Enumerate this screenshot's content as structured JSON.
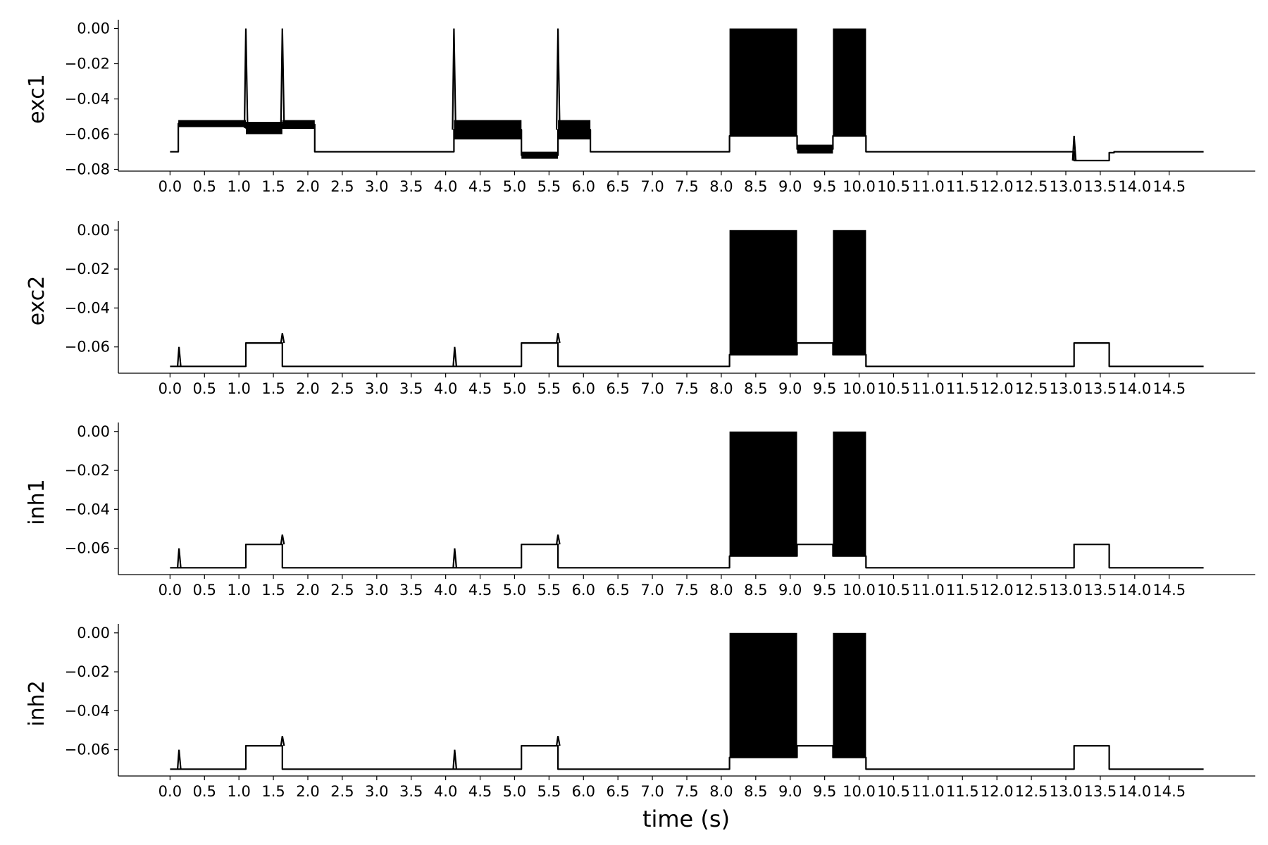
{
  "chart_data": [
    {
      "type": "line",
      "ylabel": "exc1",
      "xlabel": "",
      "xlim": [
        -0.75,
        15.75
      ],
      "ylim": [
        -0.081,
        0.001
      ],
      "yticks": [
        0.0,
        -0.02,
        -0.04,
        -0.06,
        -0.08
      ],
      "ytick_labels": [
        "0.00",
        "−0.02",
        "−0.04",
        "−0.06",
        "−0.08"
      ],
      "xticks": [
        0.0,
        0.5,
        1.0,
        1.5,
        2.0,
        2.5,
        3.0,
        3.5,
        4.0,
        4.5,
        5.0,
        5.5,
        6.0,
        6.5,
        7.0,
        7.5,
        8.0,
        8.5,
        9.0,
        9.5,
        10.0,
        10.5,
        11.0,
        11.5,
        12.0,
        12.5,
        13.0,
        13.5,
        14.0,
        14.5
      ],
      "xtick_labels": [
        "0.0",
        "0.5",
        "1.0",
        "1.5",
        "2.0",
        "2.5",
        "3.0",
        "3.5",
        "4.0",
        "4.5",
        "5.0",
        "5.5",
        "6.0",
        "6.5",
        "7.0",
        "7.5",
        "8.0",
        "8.5",
        "9.0",
        "9.5",
        "10.0",
        "10.5",
        "11.0",
        "11.5",
        "12.0",
        "12.5",
        "13.0",
        "13.5",
        "14.0",
        "14.5"
      ],
      "baseline": -0.07,
      "t_end": 15.0,
      "segments": [
        {
          "kind": "plateau",
          "t0": 0.12,
          "t1": 1.1,
          "lo": -0.056,
          "hi": -0.052
        },
        {
          "kind": "plateau",
          "t0": 1.1,
          "t1": 1.63,
          "lo": -0.06,
          "hi": -0.053
        },
        {
          "kind": "plateau",
          "t0": 1.63,
          "t1": 2.1,
          "lo": -0.057,
          "hi": -0.052
        },
        {
          "kind": "plateau",
          "t0": 4.12,
          "t1": 5.1,
          "lo": -0.063,
          "hi": -0.052
        },
        {
          "kind": "plateau",
          "t0": 5.1,
          "t1": 5.63,
          "lo": -0.074,
          "hi": -0.07
        },
        {
          "kind": "plateau",
          "t0": 5.63,
          "t1": 6.1,
          "lo": -0.063,
          "hi": -0.052
        },
        {
          "kind": "block",
          "t0": 8.12,
          "t1": 9.1,
          "lo": -0.061,
          "hi": 0.0
        },
        {
          "kind": "plateau",
          "t0": 9.1,
          "t1": 9.62,
          "lo": -0.071,
          "hi": -0.066
        },
        {
          "kind": "block",
          "t0": 9.62,
          "t1": 10.1,
          "lo": -0.061,
          "hi": 0.0
        },
        {
          "kind": "plateau",
          "t0": 13.12,
          "t1": 13.63,
          "lo": -0.0755,
          "hi": -0.0745
        },
        {
          "kind": "plateau",
          "t0": 13.63,
          "t1": 13.7,
          "lo": -0.071,
          "hi": -0.07
        }
      ],
      "spikes": [
        {
          "t": 1.1,
          "v": 0.0
        },
        {
          "t": 1.63,
          "v": 0.0
        },
        {
          "t": 4.12,
          "v": 0.0
        },
        {
          "t": 5.63,
          "v": 0.0
        },
        {
          "t": 13.12,
          "v": -0.061
        }
      ]
    },
    {
      "type": "line",
      "ylabel": "exc2",
      "xlabel": "",
      "xlim": [
        -0.75,
        15.75
      ],
      "ylim": [
        -0.0735,
        0.001
      ],
      "yticks": [
        0.0,
        -0.02,
        -0.04,
        -0.06
      ],
      "ytick_labels": [
        "0.00",
        "−0.02",
        "−0.04",
        "−0.06"
      ],
      "xticks": [
        0.0,
        0.5,
        1.0,
        1.5,
        2.0,
        2.5,
        3.0,
        3.5,
        4.0,
        4.5,
        5.0,
        5.5,
        6.0,
        6.5,
        7.0,
        7.5,
        8.0,
        8.5,
        9.0,
        9.5,
        10.0,
        10.5,
        11.0,
        11.5,
        12.0,
        12.5,
        13.0,
        13.5,
        14.0,
        14.5
      ],
      "xtick_labels": [
        "0.0",
        "0.5",
        "1.0",
        "1.5",
        "2.0",
        "2.5",
        "3.0",
        "3.5",
        "4.0",
        "4.5",
        "5.0",
        "5.5",
        "6.0",
        "6.5",
        "7.0",
        "7.5",
        "8.0",
        "8.5",
        "9.0",
        "9.5",
        "10.0",
        "10.5",
        "11.0",
        "11.5",
        "12.0",
        "12.5",
        "13.0",
        "13.5",
        "14.0",
        "14.5"
      ],
      "baseline": -0.07,
      "t_end": 15.0,
      "segments": [
        {
          "kind": "plateau",
          "t0": 1.1,
          "t1": 1.63,
          "lo": -0.058,
          "hi": -0.058
        },
        {
          "kind": "plateau",
          "t0": 5.1,
          "t1": 5.63,
          "lo": -0.058,
          "hi": -0.058
        },
        {
          "kind": "block",
          "t0": 8.12,
          "t1": 9.1,
          "lo": -0.064,
          "hi": 0.0
        },
        {
          "kind": "plateau",
          "t0": 9.1,
          "t1": 9.62,
          "lo": -0.058,
          "hi": -0.058
        },
        {
          "kind": "block",
          "t0": 9.62,
          "t1": 10.1,
          "lo": -0.064,
          "hi": 0.0
        },
        {
          "kind": "plateau",
          "t0": 13.12,
          "t1": 13.63,
          "lo": -0.058,
          "hi": -0.058
        }
      ],
      "spikes": [
        {
          "t": 0.13,
          "v": -0.06
        },
        {
          "t": 1.63,
          "v": -0.053
        },
        {
          "t": 4.13,
          "v": -0.06
        },
        {
          "t": 5.63,
          "v": -0.053
        }
      ]
    },
    {
      "type": "line",
      "ylabel": "inh1",
      "xlabel": "",
      "xlim": [
        -0.75,
        15.75
      ],
      "ylim": [
        -0.0735,
        0.001
      ],
      "yticks": [
        0.0,
        -0.02,
        -0.04,
        -0.06
      ],
      "ytick_labels": [
        "0.00",
        "−0.02",
        "−0.04",
        "−0.06"
      ],
      "xticks": [
        0.0,
        0.5,
        1.0,
        1.5,
        2.0,
        2.5,
        3.0,
        3.5,
        4.0,
        4.5,
        5.0,
        5.5,
        6.0,
        6.5,
        7.0,
        7.5,
        8.0,
        8.5,
        9.0,
        9.5,
        10.0,
        10.5,
        11.0,
        11.5,
        12.0,
        12.5,
        13.0,
        13.5,
        14.0,
        14.5
      ],
      "xtick_labels": [
        "0.0",
        "0.5",
        "1.0",
        "1.5",
        "2.0",
        "2.5",
        "3.0",
        "3.5",
        "4.0",
        "4.5",
        "5.0",
        "5.5",
        "6.0",
        "6.5",
        "7.0",
        "7.5",
        "8.0",
        "8.5",
        "9.0",
        "9.5",
        "10.0",
        "10.5",
        "11.0",
        "11.5",
        "12.0",
        "12.5",
        "13.0",
        "13.5",
        "14.0",
        "14.5"
      ],
      "baseline": -0.07,
      "t_end": 15.0,
      "segments": [
        {
          "kind": "plateau",
          "t0": 1.1,
          "t1": 1.63,
          "lo": -0.058,
          "hi": -0.058
        },
        {
          "kind": "plateau",
          "t0": 5.1,
          "t1": 5.63,
          "lo": -0.058,
          "hi": -0.058
        },
        {
          "kind": "block",
          "t0": 8.12,
          "t1": 9.1,
          "lo": -0.064,
          "hi": 0.0
        },
        {
          "kind": "plateau",
          "t0": 9.1,
          "t1": 9.62,
          "lo": -0.058,
          "hi": -0.058
        },
        {
          "kind": "block",
          "t0": 9.62,
          "t1": 10.1,
          "lo": -0.064,
          "hi": 0.0
        },
        {
          "kind": "plateau",
          "t0": 13.12,
          "t1": 13.63,
          "lo": -0.058,
          "hi": -0.058
        }
      ],
      "spikes": [
        {
          "t": 0.13,
          "v": -0.06
        },
        {
          "t": 1.63,
          "v": -0.053
        },
        {
          "t": 4.13,
          "v": -0.06
        },
        {
          "t": 5.63,
          "v": -0.053
        }
      ]
    },
    {
      "type": "line",
      "ylabel": "inh2",
      "xlabel": "time (s)",
      "xlim": [
        -0.75,
        15.75
      ],
      "ylim": [
        -0.0735,
        0.001
      ],
      "yticks": [
        0.0,
        -0.02,
        -0.04,
        -0.06
      ],
      "ytick_labels": [
        "0.00",
        "−0.02",
        "−0.04",
        "−0.06"
      ],
      "xticks": [
        0.0,
        0.5,
        1.0,
        1.5,
        2.0,
        2.5,
        3.0,
        3.5,
        4.0,
        4.5,
        5.0,
        5.5,
        6.0,
        6.5,
        7.0,
        7.5,
        8.0,
        8.5,
        9.0,
        9.5,
        10.0,
        10.5,
        11.0,
        11.5,
        12.0,
        12.5,
        13.0,
        13.5,
        14.0,
        14.5
      ],
      "xtick_labels": [
        "0.0",
        "0.5",
        "1.0",
        "1.5",
        "2.0",
        "2.5",
        "3.0",
        "3.5",
        "4.0",
        "4.5",
        "5.0",
        "5.5",
        "6.0",
        "6.5",
        "7.0",
        "7.5",
        "8.0",
        "8.5",
        "9.0",
        "9.5",
        "10.0",
        "10.5",
        "11.0",
        "11.5",
        "12.0",
        "12.5",
        "13.0",
        "13.5",
        "14.0",
        "14.5"
      ],
      "baseline": -0.07,
      "t_end": 15.0,
      "segments": [
        {
          "kind": "plateau",
          "t0": 1.1,
          "t1": 1.63,
          "lo": -0.058,
          "hi": -0.058
        },
        {
          "kind": "plateau",
          "t0": 5.1,
          "t1": 5.63,
          "lo": -0.058,
          "hi": -0.058
        },
        {
          "kind": "block",
          "t0": 8.12,
          "t1": 9.1,
          "lo": -0.064,
          "hi": 0.0
        },
        {
          "kind": "plateau",
          "t0": 9.1,
          "t1": 9.62,
          "lo": -0.058,
          "hi": -0.058
        },
        {
          "kind": "block",
          "t0": 9.62,
          "t1": 10.1,
          "lo": -0.064,
          "hi": 0.0
        },
        {
          "kind": "plateau",
          "t0": 13.12,
          "t1": 13.63,
          "lo": -0.058,
          "hi": -0.058
        }
      ],
      "spikes": [
        {
          "t": 0.13,
          "v": -0.06
        },
        {
          "t": 1.63,
          "v": -0.053
        },
        {
          "t": 4.13,
          "v": -0.06
        },
        {
          "t": 5.63,
          "v": -0.053
        }
      ]
    }
  ],
  "style": {
    "line_color": "#000000",
    "background": "#ffffff"
  }
}
